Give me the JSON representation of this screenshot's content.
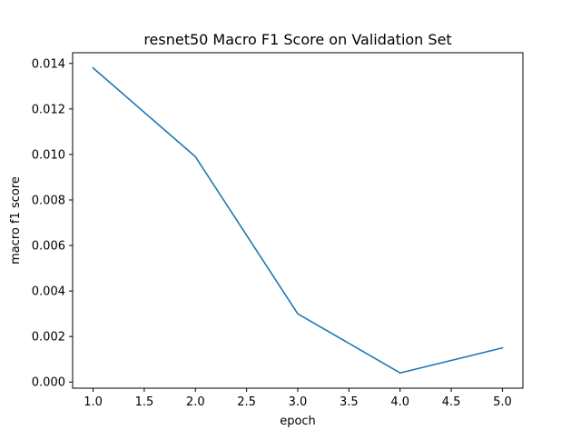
{
  "chart_data": {
    "type": "line",
    "title": "resnet50 Macro F1 Score on Validation Set",
    "xlabel": "epoch",
    "ylabel": "macro f1 score",
    "x": [
      1.0,
      2.0,
      3.0,
      4.0,
      5.0
    ],
    "series": [
      {
        "values": [
          0.0138,
          0.0099,
          0.003,
          0.0004,
          0.0015
        ],
        "color": "#1f77b4"
      }
    ],
    "xlim": [
      0.8,
      5.2
    ],
    "ylim": [
      -0.00027,
      0.01447
    ],
    "xticks": [
      1.0,
      1.5,
      2.0,
      2.5,
      3.0,
      3.5,
      4.0,
      4.5,
      5.0
    ],
    "xtick_labels": [
      "1.0",
      "1.5",
      "2.0",
      "2.5",
      "3.0",
      "3.5",
      "4.0",
      "4.5",
      "5.0"
    ],
    "yticks": [
      0.0,
      0.002,
      0.004,
      0.006,
      0.008,
      0.01,
      0.012,
      0.014
    ],
    "ytick_labels": [
      "0.000",
      "0.002",
      "0.004",
      "0.006",
      "0.008",
      "0.010",
      "0.012",
      "0.014"
    ],
    "grid": false,
    "legend": "none"
  }
}
